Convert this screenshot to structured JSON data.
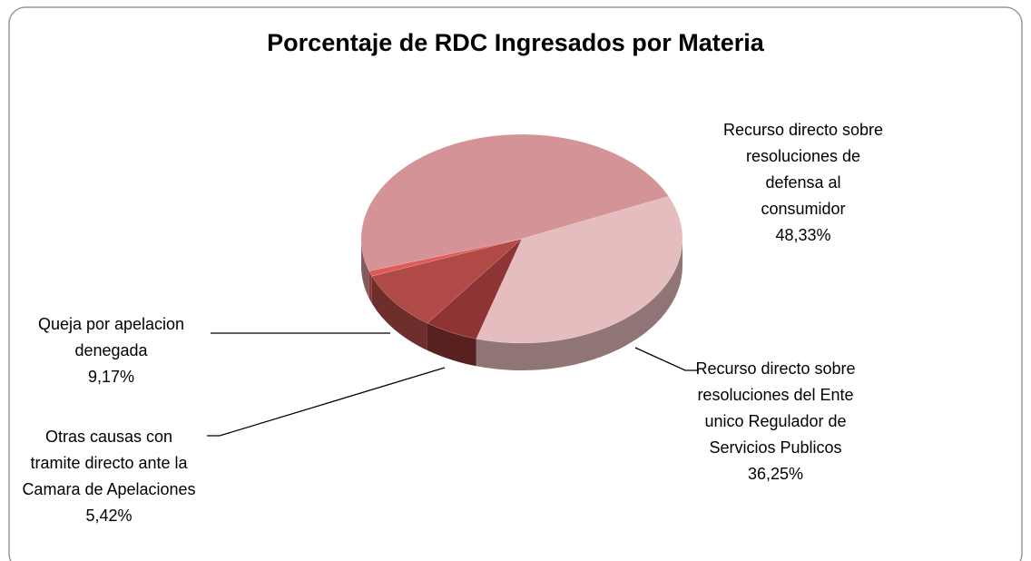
{
  "chart_data": {
    "type": "pie3d",
    "title": "Porcentaje de RDC Ingresados por Materia",
    "categories": [
      "Recurso directo sobre resoluciones de defensa al consumidor",
      "Recurso directo sobre resoluciones del Ente unico Regulador de Servicios Publicos",
      "Otras causas con tramite directo ante la Camara de Apelaciones",
      "Queja por apelacion denegada",
      null
    ],
    "values": [
      48.33,
      36.25,
      5.42,
      9.17,
      0.83
    ],
    "value_labels": [
      "48,33%",
      "36,25%",
      "5,42%",
      "9,17%",
      null
    ],
    "colors": [
      "#d49396",
      "#e6bdbe",
      "#8f3434",
      "#b04a47",
      "#e05a57"
    ]
  }
}
